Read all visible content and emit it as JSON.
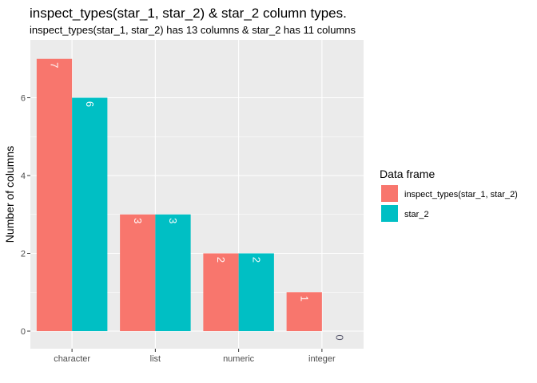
{
  "chart_data": {
    "type": "bar",
    "title": "inspect_types(star_1, star_2) & star_2 column types.",
    "subtitle": "inspect_types(star_1, star_2) has 13 columns & star_2 has 11 columns",
    "xlabel": "",
    "ylabel": "Number of columns",
    "categories": [
      "character",
      "list",
      "numeric",
      "integer"
    ],
    "series": [
      {
        "name": "inspect_types(star_1, star_2)",
        "values": [
          7,
          3,
          2,
          1
        ],
        "color": "#F8766D"
      },
      {
        "name": "star_2",
        "values": [
          6,
          3,
          2,
          0
        ],
        "color": "#00BFC4"
      }
    ],
    "yticks": [
      0,
      2,
      4,
      6
    ],
    "ylim": [
      0,
      7
    ],
    "grid": true,
    "legend": {
      "title": "Data frame",
      "position": "right"
    },
    "panel_background": "#EBEBEB",
    "grid_color": "#ffffff",
    "bar_label_colors": {
      "nonzero": "#ffffff",
      "zero": "#5a5a6e"
    }
  }
}
